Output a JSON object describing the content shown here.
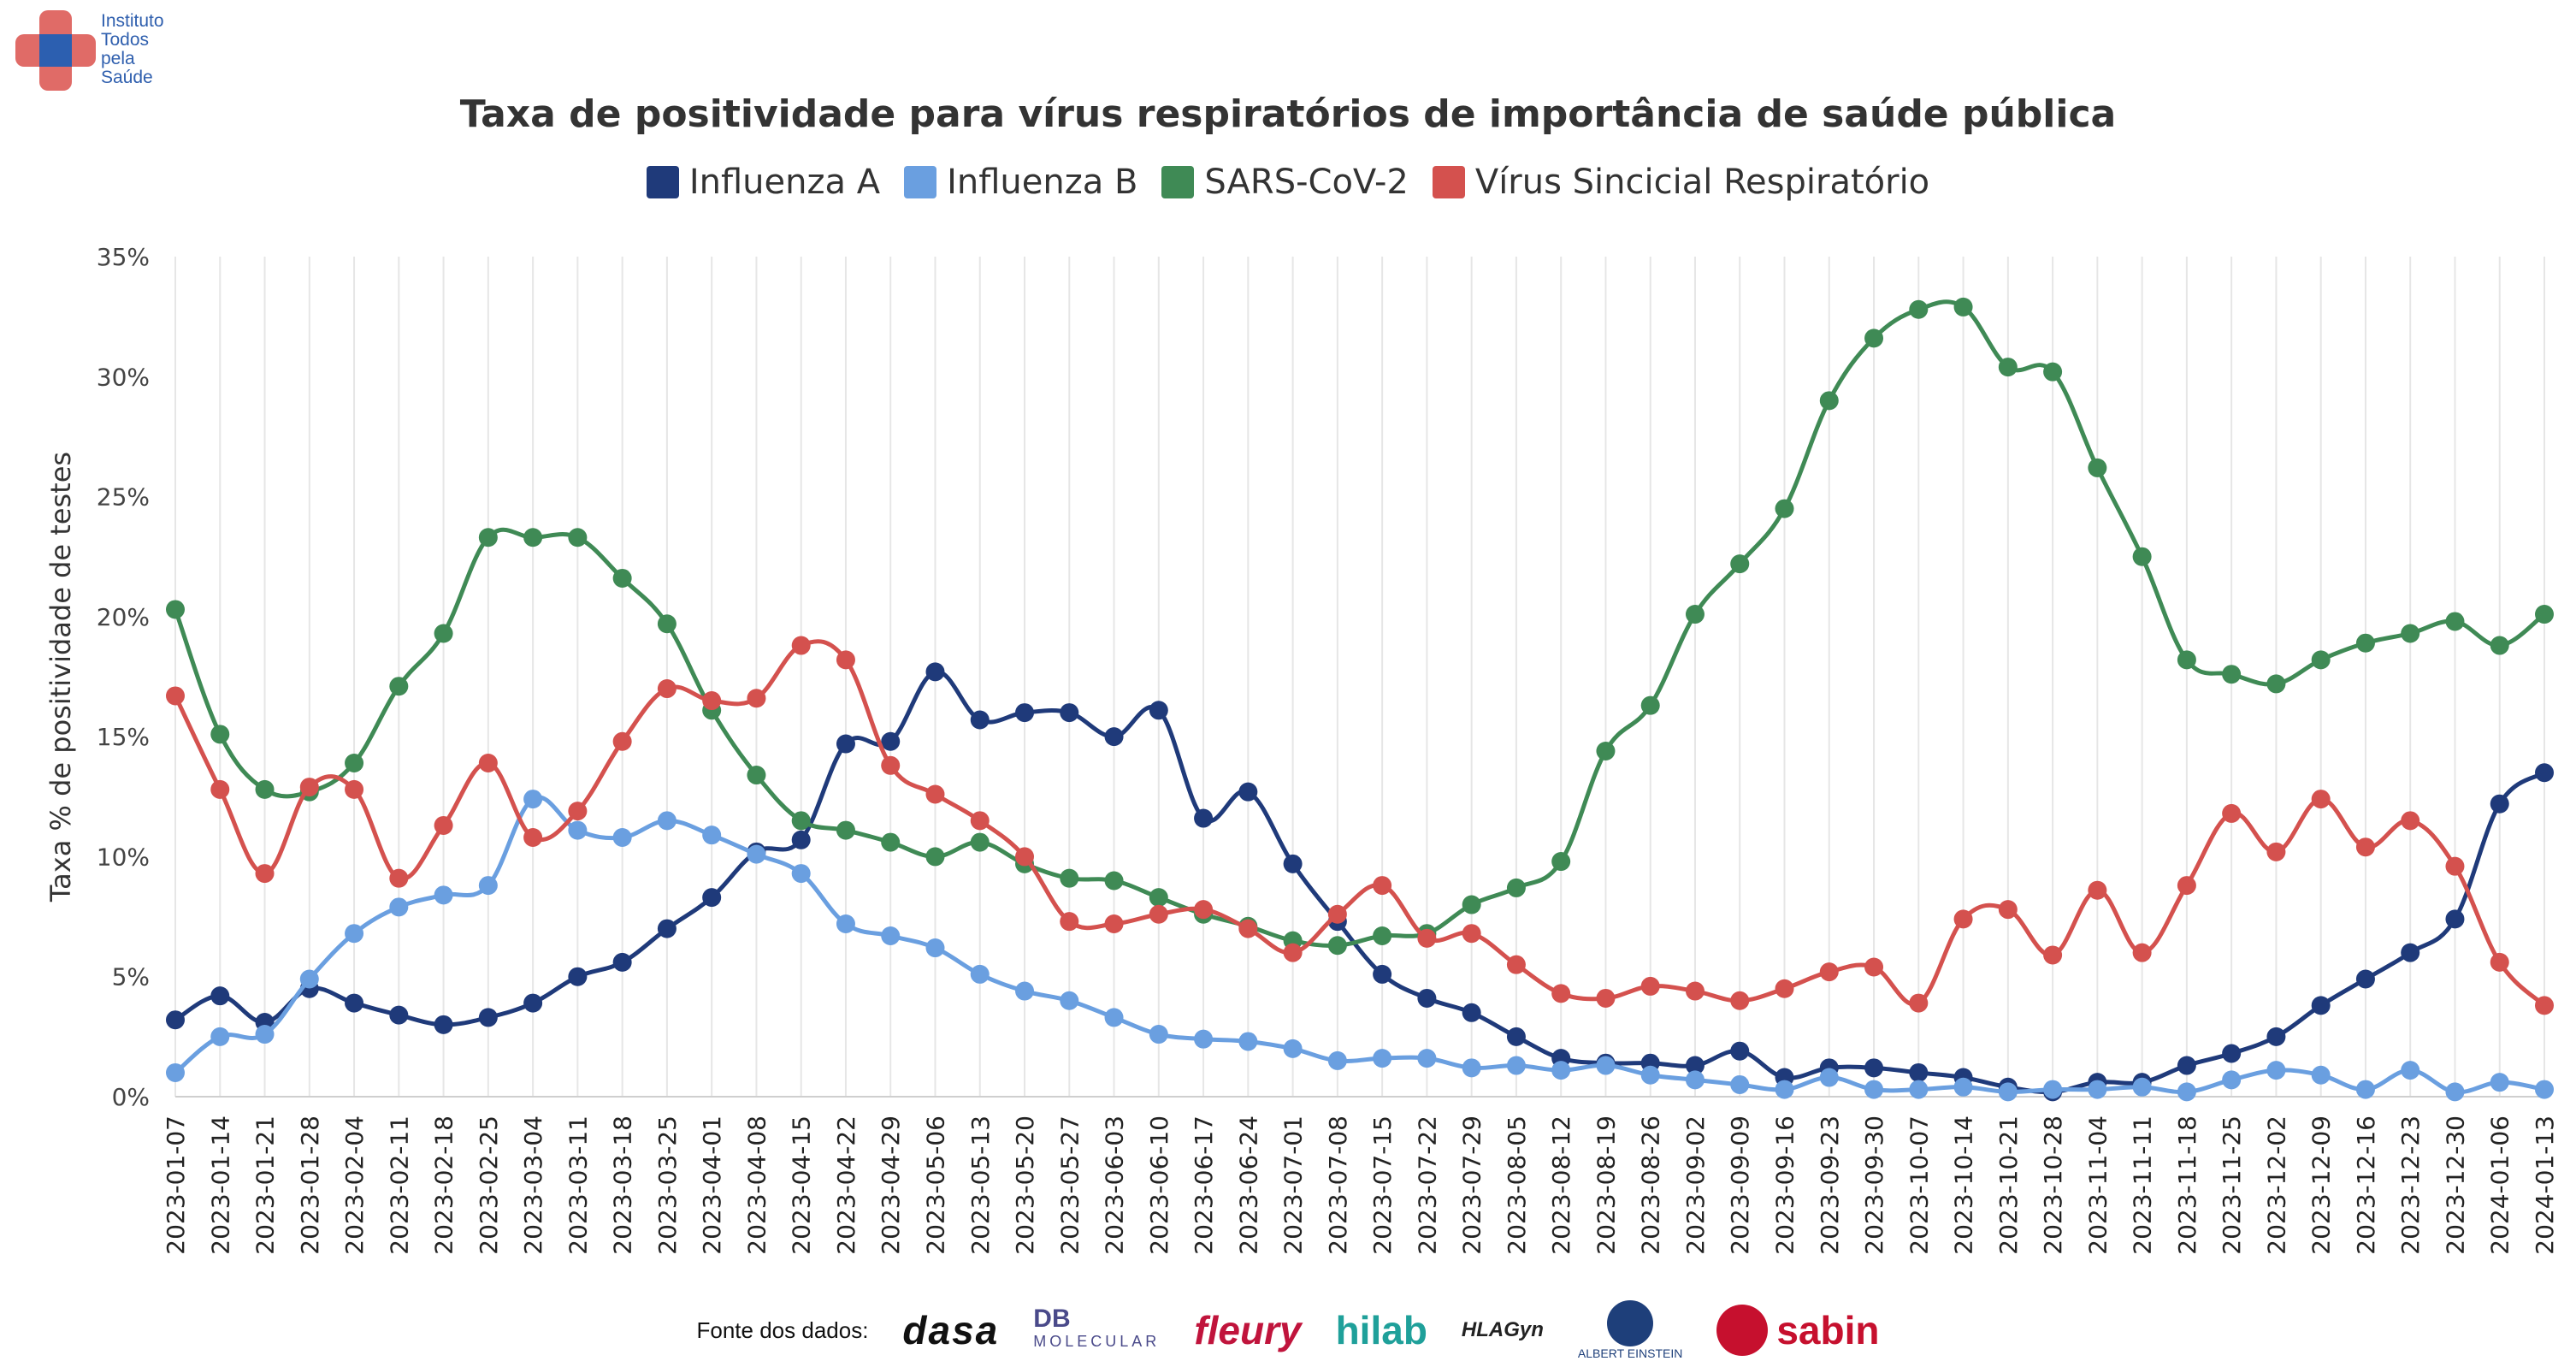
{
  "logo": {
    "lines": [
      "Instituto",
      "Todos",
      "pela",
      "Saúde"
    ]
  },
  "chart_data": {
    "type": "line",
    "title": "Taxa de positividade para vírus respiratórios de importância de saúde pública",
    "xlabel": "",
    "ylabel": "Taxa % de positividade de testes",
    "ylim": [
      0,
      35
    ],
    "yticks": [
      "0%",
      "5%",
      "10%",
      "15%",
      "20%",
      "25%",
      "30%",
      "35%"
    ],
    "grid": "vertical",
    "legend_position": "top",
    "categories": [
      "2023-01-07",
      "2023-01-14",
      "2023-01-21",
      "2023-01-28",
      "2023-02-04",
      "2023-02-11",
      "2023-02-18",
      "2023-02-25",
      "2023-03-04",
      "2023-03-11",
      "2023-03-18",
      "2023-03-25",
      "2023-04-01",
      "2023-04-08",
      "2023-04-15",
      "2023-04-22",
      "2023-04-29",
      "2023-05-06",
      "2023-05-13",
      "2023-05-20",
      "2023-05-27",
      "2023-06-03",
      "2023-06-10",
      "2023-06-17",
      "2023-06-24",
      "2023-07-01",
      "2023-07-08",
      "2023-07-15",
      "2023-07-22",
      "2023-07-29",
      "2023-08-05",
      "2023-08-12",
      "2023-08-19",
      "2023-08-26",
      "2023-09-02",
      "2023-09-09",
      "2023-09-16",
      "2023-09-23",
      "2023-09-30",
      "2023-10-07",
      "2023-10-14",
      "2023-10-21",
      "2023-10-28",
      "2023-11-04",
      "2023-11-11",
      "2023-11-18",
      "2023-11-25",
      "2023-12-02",
      "2023-12-09",
      "2023-12-16",
      "2023-12-23",
      "2023-12-30",
      "2024-01-06",
      "2024-01-13"
    ],
    "series": [
      {
        "name": "Influenza A",
        "color": "#1f3a7a",
        "values": [
          3.2,
          4.2,
          3.1,
          4.5,
          3.9,
          3.4,
          3.0,
          3.3,
          3.9,
          5.0,
          5.6,
          7.0,
          8.3,
          10.2,
          10.7,
          14.7,
          14.8,
          17.7,
          15.7,
          16.0,
          16.0,
          15.0,
          16.1,
          11.6,
          12.7,
          9.7,
          7.3,
          5.1,
          4.1,
          3.5,
          2.5,
          1.6,
          1.4,
          1.4,
          1.3,
          1.9,
          0.8,
          1.2,
          1.2,
          1.0,
          0.8,
          0.4,
          0.2,
          0.6,
          0.6,
          1.3,
          1.8,
          2.5,
          3.8,
          4.9,
          6.0,
          7.4,
          12.2,
          13.5
        ]
      },
      {
        "name": "Influenza B",
        "color": "#6a9fe0",
        "values": [
          1.0,
          2.5,
          2.6,
          4.9,
          6.8,
          7.9,
          8.4,
          8.8,
          12.4,
          11.1,
          10.8,
          11.5,
          10.9,
          10.1,
          9.3,
          7.2,
          6.7,
          6.2,
          5.1,
          4.4,
          4.0,
          3.3,
          2.6,
          2.4,
          2.3,
          2.0,
          1.5,
          1.6,
          1.6,
          1.2,
          1.3,
          1.1,
          1.3,
          0.9,
          0.7,
          0.5,
          0.3,
          0.8,
          0.3,
          0.3,
          0.4,
          0.2,
          0.3,
          0.3,
          0.4,
          0.2,
          0.7,
          1.1,
          0.9,
          0.3,
          1.1,
          0.2,
          0.6,
          0.3
        ]
      },
      {
        "name": "SARS-CoV-2",
        "color": "#3f8a55",
        "values": [
          20.3,
          15.1,
          12.8,
          12.7,
          13.9,
          17.1,
          19.3,
          23.3,
          23.3,
          23.3,
          21.6,
          19.7,
          16.1,
          13.4,
          11.5,
          11.1,
          10.6,
          10.0,
          10.6,
          9.7,
          9.1,
          9.0,
          8.3,
          7.6,
          7.1,
          6.5,
          6.3,
          6.7,
          6.8,
          8.0,
          8.7,
          9.8,
          14.4,
          16.3,
          20.1,
          22.2,
          24.5,
          29.0,
          31.6,
          32.8,
          32.9,
          30.4,
          30.2,
          26.2,
          22.5,
          18.2,
          17.6,
          17.2,
          18.2,
          18.9,
          19.3,
          19.8,
          18.8,
          20.1
        ]
      },
      {
        "name": "Vírus Sincicial Respiratório",
        "color": "#d4514e",
        "values": [
          16.7,
          12.8,
          9.3,
          12.9,
          12.8,
          9.1,
          11.3,
          13.9,
          10.8,
          11.9,
          14.8,
          17.0,
          16.5,
          16.6,
          18.8,
          18.2,
          13.8,
          12.6,
          11.5,
          10.0,
          7.3,
          7.2,
          7.6,
          7.8,
          7.0,
          6.0,
          7.6,
          8.8,
          6.6,
          6.8,
          5.5,
          4.3,
          4.1,
          4.6,
          4.4,
          4.0,
          4.5,
          5.2,
          5.4,
          3.9,
          7.4,
          7.8,
          5.9,
          8.6,
          6.0,
          8.8,
          11.8,
          10.2,
          12.4,
          10.4,
          11.5,
          9.6,
          5.6,
          3.8
        ]
      }
    ]
  },
  "sources": {
    "label": "Fonte dos dados:",
    "dasa": "dasa",
    "db_main": "DB",
    "db_sub": "MOLECULAR",
    "fleury": "fleury",
    "hilab": "hilab",
    "hlagyn": "HLAGyn",
    "einstein": "ALBERT EINSTEIN",
    "sabin": "sabin"
  }
}
